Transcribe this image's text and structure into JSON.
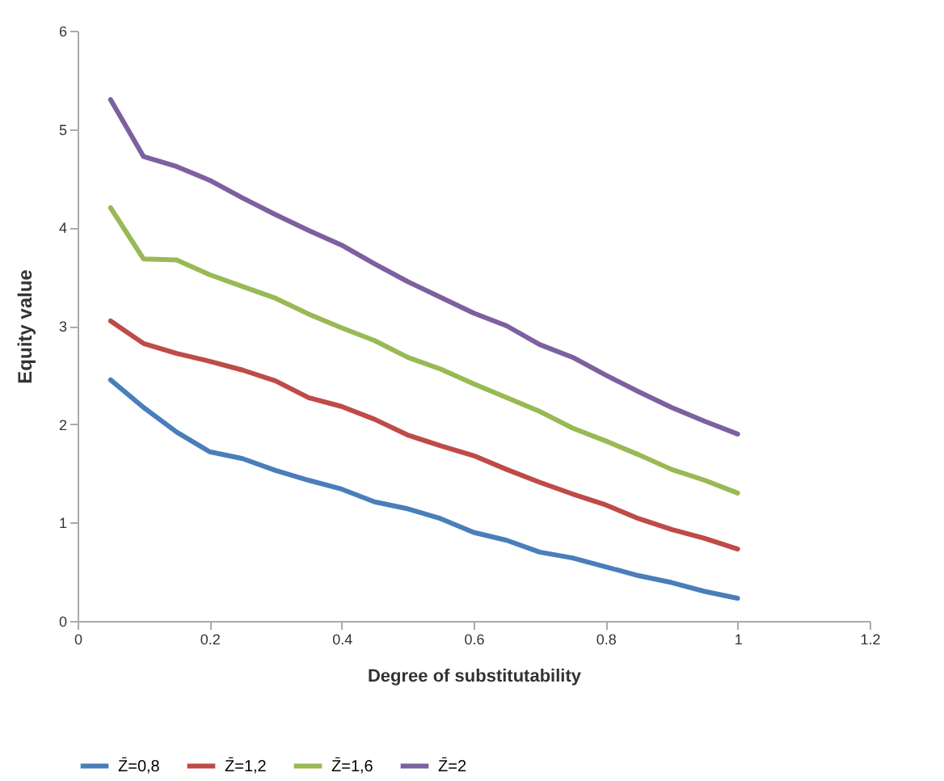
{
  "chart_data": {
    "type": "line",
    "xlabel": "Degree of substitutability",
    "ylabel": "Equity value",
    "x": [
      0.05,
      0.1,
      0.15,
      0.2,
      0.25,
      0.3,
      0.35,
      0.4,
      0.45,
      0.5,
      0.55,
      0.6,
      0.65,
      0.7,
      0.75,
      0.8,
      0.85,
      0.9,
      0.95,
      1
    ],
    "series": [
      {
        "name": "Z̄=0,8",
        "color": "#4a7ebb",
        "values": [
          2.45,
          2.17,
          1.92,
          1.72,
          1.65,
          1.53,
          1.43,
          1.34,
          1.21,
          1.14,
          1.04,
          0.9,
          0.82,
          0.7,
          0.64,
          0.55,
          0.46,
          0.39,
          0.3,
          0.23
        ]
      },
      {
        "name": "Z̄=1,2",
        "color": "#be4b48",
        "values": [
          3.05,
          2.82,
          2.72,
          2.64,
          2.55,
          2.44,
          2.27,
          2.18,
          2.05,
          1.89,
          1.78,
          1.68,
          1.54,
          1.41,
          1.29,
          1.18,
          1.04,
          0.93,
          0.84,
          0.73
        ]
      },
      {
        "name": "Z̄=1,6",
        "color": "#98b954",
        "values": [
          4.2,
          3.68,
          3.67,
          3.52,
          3.4,
          3.28,
          3.12,
          2.98,
          2.85,
          2.68,
          2.56,
          2.41,
          2.27,
          2.13,
          1.96,
          1.83,
          1.69,
          1.54,
          1.43,
          1.3
        ]
      },
      {
        "name": "Z̄=2",
        "color": "#7d60a0",
        "values": [
          5.3,
          4.72,
          4.62,
          4.48,
          4.3,
          4.13,
          3.97,
          3.82,
          3.63,
          3.45,
          3.29,
          3.13,
          3.0,
          2.81,
          2.68,
          2.5,
          2.33,
          2.17,
          2.03,
          1.9
        ]
      }
    ],
    "xlim": [
      0,
      1.2
    ],
    "xticks": [
      0,
      0.2,
      0.4,
      0.6,
      0.8,
      1,
      1.2
    ],
    "ylim": [
      0,
      6
    ],
    "yticks": [
      0,
      1,
      2,
      3,
      4,
      5,
      6
    ],
    "grid": false,
    "legend": "bottom",
    "marker": "none",
    "line_style": "solid"
  }
}
